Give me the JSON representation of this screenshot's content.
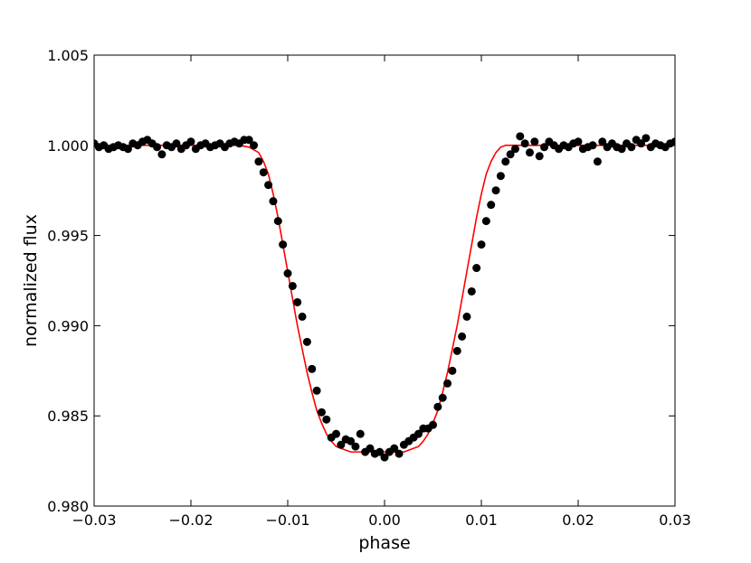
{
  "chart_data": {
    "type": "scatter",
    "title": "",
    "xlabel": "phase",
    "ylabel": "normalized flux",
    "xlim": [
      -0.03,
      0.03
    ],
    "ylim": [
      0.98,
      1.005
    ],
    "grid": false,
    "legend": "none",
    "x_ticks": [
      -0.03,
      -0.02,
      -0.01,
      0.0,
      0.01,
      0.02,
      0.03
    ],
    "x_tick_labels": [
      "−0.03",
      "−0.02",
      "−0.01",
      "0.00",
      "0.01",
      "0.02",
      "0.03"
    ],
    "y_ticks": [
      0.98,
      0.985,
      0.99,
      0.995,
      1.0,
      1.005
    ],
    "y_tick_labels": [
      "0.980",
      "0.985",
      "0.990",
      "0.995",
      "1.000",
      "1.005"
    ],
    "colors": {
      "points": "#000000",
      "model": "#ff0000"
    },
    "series": [
      {
        "kind": "points",
        "x": [
          -0.03,
          -0.0295,
          -0.029,
          -0.0285,
          -0.028,
          -0.0275,
          -0.027,
          -0.0265,
          -0.026,
          -0.0255,
          -0.025,
          -0.0245,
          -0.024,
          -0.0235,
          -0.023,
          -0.0225,
          -0.022,
          -0.0215,
          -0.021,
          -0.0205,
          -0.02,
          -0.0195,
          -0.019,
          -0.0185,
          -0.018,
          -0.0175,
          -0.017,
          -0.0165,
          -0.016,
          -0.0155,
          -0.015,
          -0.0145,
          -0.014,
          -0.0135,
          -0.013,
          -0.0125,
          -0.012,
          -0.0115,
          -0.011,
          -0.0105,
          -0.01,
          -0.0095,
          -0.009,
          -0.0085,
          -0.008,
          -0.0075,
          -0.007,
          -0.0065,
          -0.006,
          -0.0055,
          -0.005,
          -0.0045,
          -0.004,
          -0.0035,
          -0.003,
          -0.0025,
          -0.002,
          -0.0015,
          -0.001,
          -0.0005,
          0.0,
          0.0005,
          0.001,
          0.0015,
          0.002,
          0.0025,
          0.003,
          0.0035,
          0.004,
          0.0045,
          0.005,
          0.0055,
          0.006,
          0.0065,
          0.007,
          0.0075,
          0.008,
          0.0085,
          0.009,
          0.0095,
          0.01,
          0.0105,
          0.011,
          0.0115,
          0.012,
          0.0125,
          0.013,
          0.0135,
          0.014,
          0.0145,
          0.015,
          0.0155,
          0.016,
          0.0165,
          0.017,
          0.0175,
          0.018,
          0.0185,
          0.019,
          0.0195,
          0.02,
          0.0205,
          0.021,
          0.0215,
          0.022,
          0.0225,
          0.023,
          0.0235,
          0.024,
          0.0245,
          0.025,
          0.0255,
          0.026,
          0.0265,
          0.027,
          0.0275,
          0.028,
          0.0285,
          0.029,
          0.0295,
          0.03
        ],
        "y": [
          1.0001,
          0.9999,
          1.0,
          0.9998,
          0.9999,
          1.0,
          0.9999,
          0.9998,
          1.0001,
          1.0,
          1.0002,
          1.0003,
          1.0001,
          0.9999,
          0.9995,
          1.0,
          0.9999,
          1.0001,
          0.9998,
          1.0,
          1.0002,
          0.9998,
          1.0,
          1.0001,
          0.9999,
          1.0,
          1.0001,
          0.9999,
          1.0001,
          1.0002,
          1.0001,
          1.0003,
          1.0003,
          1.0,
          0.9991,
          0.9985,
          0.9978,
          0.9969,
          0.9958,
          0.9945,
          0.9929,
          0.9922,
          0.9913,
          0.9905,
          0.9891,
          0.9876,
          0.9864,
          0.9852,
          0.9848,
          0.9838,
          0.984,
          0.9834,
          0.9837,
          0.9836,
          0.9833,
          0.984,
          0.983,
          0.9832,
          0.9829,
          0.983,
          0.9827,
          0.983,
          0.9832,
          0.9829,
          0.9834,
          0.9836,
          0.9838,
          0.984,
          0.9843,
          0.9843,
          0.9845,
          0.9855,
          0.986,
          0.9868,
          0.9875,
          0.9886,
          0.9894,
          0.9905,
          0.9919,
          0.9932,
          0.9945,
          0.9958,
          0.9967,
          0.9975,
          0.9983,
          0.9991,
          0.9995,
          0.9998,
          1.0005,
          1.0001,
          0.9996,
          1.0002,
          0.9994,
          0.9999,
          1.0002,
          1.0,
          0.9998,
          1.0,
          0.9999,
          1.0001,
          1.0002,
          0.9998,
          0.9999,
          1.0,
          0.9991,
          1.0002,
          0.9999,
          1.0001,
          0.9999,
          0.9998,
          1.0001,
          0.9999,
          1.0003,
          1.0001,
          1.0004,
          0.9999,
          1.0001,
          1.0,
          0.9999,
          1.0001,
          1.0002
        ]
      },
      {
        "kind": "model-line",
        "x": [
          -0.03,
          -0.015,
          -0.014,
          -0.013,
          -0.0125,
          -0.012,
          -0.0115,
          -0.011,
          -0.0105,
          -0.01,
          -0.0095,
          -0.009,
          -0.0085,
          -0.008,
          -0.0075,
          -0.007,
          -0.0065,
          -0.006,
          -0.0055,
          -0.005,
          -0.0045,
          -0.004,
          -0.0035,
          -0.003,
          -0.0025,
          -0.002,
          -0.0015,
          -0.001,
          -0.0005,
          0.0,
          0.0005,
          0.001,
          0.0015,
          0.002,
          0.0025,
          0.003,
          0.0035,
          0.004,
          0.0045,
          0.005,
          0.0055,
          0.006,
          0.0065,
          0.007,
          0.0075,
          0.008,
          0.0085,
          0.009,
          0.0095,
          0.01,
          0.0105,
          0.011,
          0.0115,
          0.012,
          0.0125,
          0.013,
          0.014,
          0.015,
          0.03
        ],
        "y": [
          1.0,
          1.0,
          0.9999,
          0.9996,
          0.9991,
          0.9984,
          0.9973,
          0.996,
          0.9945,
          0.993,
          0.9915,
          0.99,
          0.9887,
          0.9874,
          0.9863,
          0.9853,
          0.9846,
          0.984,
          0.9836,
          0.9833,
          0.9832,
          0.9831,
          0.983,
          0.983,
          0.983,
          0.983,
          0.983,
          0.983,
          0.983,
          0.983,
          0.983,
          0.983,
          0.983,
          0.983,
          0.9831,
          0.9832,
          0.9833,
          0.9836,
          0.984,
          0.9846,
          0.9853,
          0.9863,
          0.9874,
          0.9887,
          0.99,
          0.9915,
          0.993,
          0.9945,
          0.996,
          0.9973,
          0.9984,
          0.9991,
          0.9996,
          0.9999,
          1.0,
          1.0,
          1.0,
          1.0,
          1.0
        ]
      }
    ]
  }
}
